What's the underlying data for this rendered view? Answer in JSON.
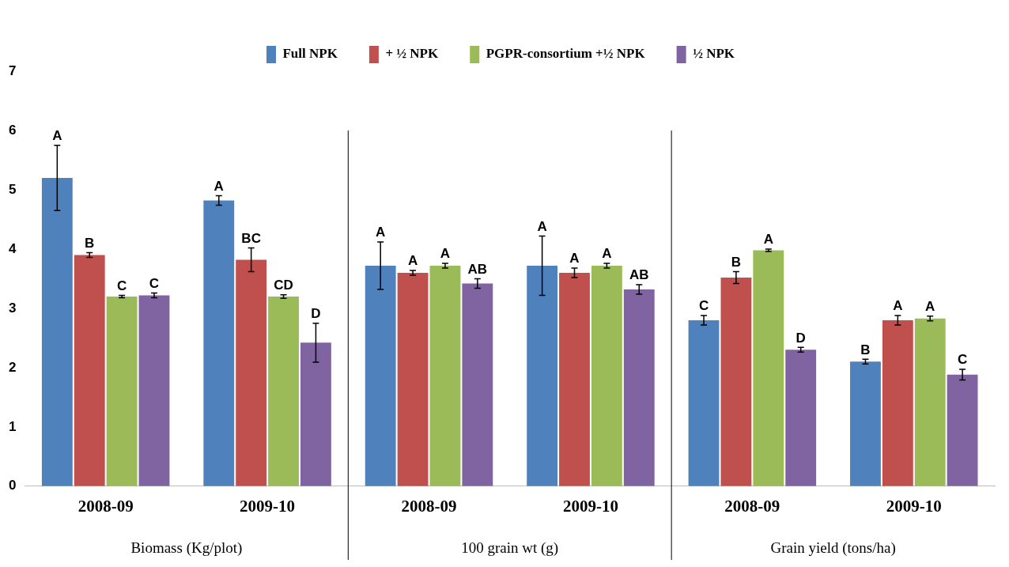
{
  "chart_data": {
    "type": "bar",
    "categories": [
      "2008-09",
      "2009-10",
      "2008-09",
      "2009-10",
      "2008-09",
      "2009-10"
    ],
    "series": [
      {
        "name": "Full NPK",
        "color": "#4f81bd",
        "values": [
          5.2,
          4.82,
          3.72,
          3.72,
          2.8,
          2.1
        ],
        "errors": [
          0.55,
          0.08,
          0.4,
          0.5,
          0.08,
          0.04
        ],
        "value_labels": [
          "A",
          "A",
          "A",
          "A",
          "C",
          "B"
        ]
      },
      {
        "name": "+ ½ NPK",
        "color": "#c0504d",
        "values": [
          3.9,
          3.82,
          3.6,
          3.6,
          3.52,
          2.8
        ],
        "errors": [
          0.04,
          0.2,
          0.04,
          0.08,
          0.1,
          0.08
        ],
        "value_labels": [
          "B",
          "BC",
          "A",
          "A",
          "B",
          "A"
        ]
      },
      {
        "name": "PGPR-consortium +½ NPK",
        "color": "#9bbb59",
        "values": [
          3.2,
          3.2,
          3.72,
          3.72,
          3.98,
          2.83
        ],
        "errors": [
          0.02,
          0.03,
          0.04,
          0.04,
          0.02,
          0.04
        ],
        "value_labels": [
          "C",
          "CD",
          "A",
          "A",
          "A",
          "A"
        ]
      },
      {
        "name": "½ NPK",
        "color": "#8064a2",
        "values": [
          3.22,
          2.42,
          3.42,
          3.32,
          2.3,
          1.88
        ],
        "errors": [
          0.04,
          0.33,
          0.08,
          0.08,
          0.04,
          0.09
        ],
        "value_labels": [
          "C",
          "D",
          "AB",
          "AB",
          "D",
          "C"
        ]
      }
    ],
    "ylim": [
      0,
      7
    ],
    "yticks": [
      0,
      1,
      2,
      3,
      4,
      5,
      6,
      7
    ],
    "grid": false,
    "legend": "top",
    "annotations": [
      "Biomass (Kg/plot)",
      "100 grain wt (g)",
      "Grain yield (tons/ha)"
    ]
  }
}
